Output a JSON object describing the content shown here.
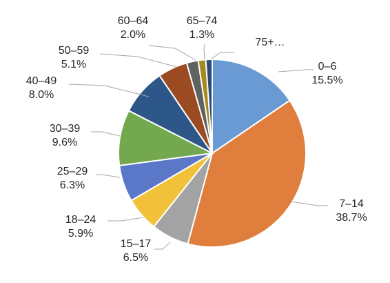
{
  "chart_data": {
    "type": "pie",
    "title": "",
    "slices": [
      {
        "label": "0–6",
        "pct_text": "15.5%",
        "value": 15.5,
        "color": "#6a9ad3"
      },
      {
        "label": "7–14",
        "pct_text": "38.7%",
        "value": 38.7,
        "color": "#e07f3d"
      },
      {
        "label": "15–17",
        "pct_text": "6.5%",
        "value": 6.5,
        "color": "#a3a3a3"
      },
      {
        "label": "18–24",
        "pct_text": "5.9%",
        "value": 5.9,
        "color": "#f2c13a"
      },
      {
        "label": "25–29",
        "pct_text": "6.3%",
        "value": 6.3,
        "color": "#5b77c8"
      },
      {
        "label": "30–39",
        "pct_text": "9.6%",
        "value": 9.6,
        "color": "#74a84e"
      },
      {
        "label": "40–49",
        "pct_text": "8.0%",
        "value": 8.0,
        "color": "#2d5788"
      },
      {
        "label": "50–59",
        "pct_text": "5.1%",
        "value": 5.1,
        "color": "#9a4b22"
      },
      {
        "label": "60–64",
        "pct_text": "2.0%",
        "value": 2.0,
        "color": "#616161"
      },
      {
        "label": "65–74",
        "pct_text": "1.3%",
        "value": 1.3,
        "color": "#a6891f"
      },
      {
        "label": "75+…",
        "pct_text": "",
        "value": 1.1,
        "color": "#2a4a78"
      }
    ]
  }
}
